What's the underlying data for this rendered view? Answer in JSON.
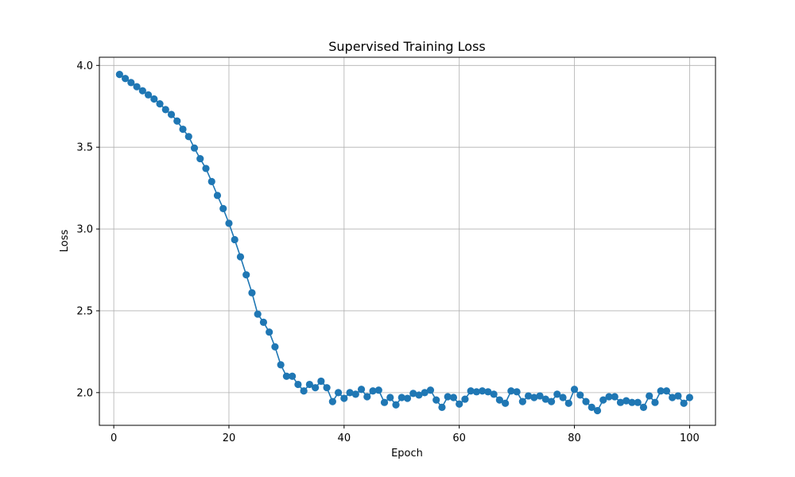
{
  "chart_data": {
    "type": "line",
    "title": "Supervised Training Loss",
    "xlabel": "Epoch",
    "ylabel": "Loss",
    "xlim": [
      -2.5,
      104.5
    ],
    "ylim": [
      1.8,
      4.05
    ],
    "xticks": [
      0,
      20,
      40,
      60,
      80,
      100
    ],
    "yticks": [
      2.0,
      2.5,
      3.0,
      3.5,
      4.0
    ],
    "xtick_labels": [
      "0",
      "20",
      "40",
      "60",
      "80",
      "100"
    ],
    "ytick_labels": [
      "2.0",
      "2.5",
      "3.0",
      "3.5",
      "4.0"
    ],
    "grid": true,
    "legend": "none",
    "line_color": "#1f77b4",
    "marker": "circle",
    "series": [
      {
        "x": [
          1,
          2,
          3,
          4,
          5,
          6,
          7,
          8,
          9,
          10,
          11,
          12,
          13,
          14,
          15,
          16,
          17,
          18,
          19,
          20,
          21,
          22,
          23,
          24,
          25,
          26,
          27,
          28,
          29,
          30,
          31,
          32,
          33,
          34,
          35,
          36,
          37,
          38,
          39,
          40,
          41,
          42,
          43,
          44,
          45,
          46,
          47,
          48,
          49,
          50,
          51,
          52,
          53,
          54,
          55,
          56,
          57,
          58,
          59,
          60,
          61,
          62,
          63,
          64,
          65,
          66,
          67,
          68,
          69,
          70,
          71,
          72,
          73,
          74,
          75,
          76,
          77,
          78,
          79,
          80,
          81,
          82,
          83,
          84,
          85,
          86,
          87,
          88,
          89,
          90,
          91,
          92,
          93,
          94,
          95,
          96,
          97,
          98,
          99,
          100
        ],
        "values": [
          3.945,
          3.92,
          3.895,
          3.87,
          3.845,
          3.82,
          3.795,
          3.765,
          3.73,
          3.7,
          3.66,
          3.61,
          3.565,
          3.495,
          3.43,
          3.37,
          3.29,
          3.205,
          3.125,
          3.035,
          2.935,
          2.83,
          2.72,
          2.61,
          2.48,
          2.43,
          2.37,
          2.28,
          2.17,
          2.1,
          2.1,
          2.05,
          2.01,
          2.05,
          2.03,
          2.07,
          2.03,
          1.945,
          2.0,
          1.965,
          2.0,
          1.99,
          2.02,
          1.975,
          2.01,
          2.015,
          1.94,
          1.97,
          1.925,
          1.97,
          1.965,
          1.995,
          1.985,
          2.0,
          2.015,
          1.955,
          1.91,
          1.975,
          1.97,
          1.93,
          1.96,
          2.01,
          2.005,
          2.01,
          2.005,
          1.99,
          1.955,
          1.935,
          2.01,
          2.005,
          1.945,
          1.98,
          1.97,
          1.98,
          1.96,
          1.945,
          1.99,
          1.97,
          1.935,
          2.02,
          1.985,
          1.945,
          1.91,
          1.89,
          1.955,
          1.975,
          1.975,
          1.94,
          1.95,
          1.94,
          1.94,
          1.91,
          1.98,
          1.94,
          2.01,
          2.01,
          1.97,
          1.98,
          1.935,
          1.97
        ]
      }
    ]
  }
}
